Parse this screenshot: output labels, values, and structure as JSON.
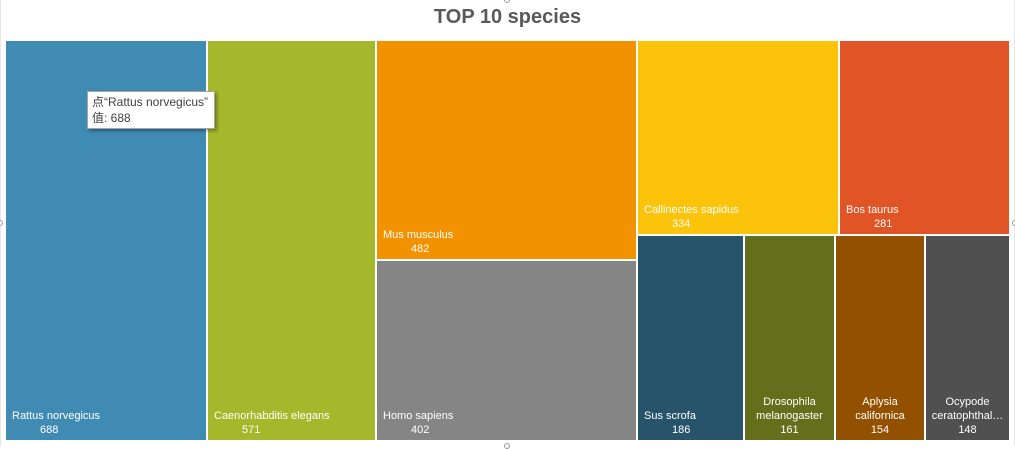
{
  "chart_data": {
    "type": "treemap",
    "title": "TOP 10 species",
    "items": [
      {
        "name": "Rattus norvegicus",
        "value": 688,
        "color": "#3f8bb3"
      },
      {
        "name": "Caenorhabditis elegans",
        "value": 571,
        "color": "#a5b72a"
      },
      {
        "name": "Mus musculus",
        "value": 482,
        "color": "#f39200"
      },
      {
        "name": "Homo sapiens",
        "value": 402,
        "color": "#858585"
      },
      {
        "name": "Callinectes sapidus",
        "value": 334,
        "color": "#fcc30b"
      },
      {
        "name": "Bos taurus",
        "value": 281,
        "color": "#e15426"
      },
      {
        "name": "Sus scrofa",
        "value": 186,
        "color": "#27546b"
      },
      {
        "name": "Drosophila melanogaster",
        "value": 161,
        "color": "#636f1a"
      },
      {
        "name": "Aplysia californica",
        "value": 154,
        "color": "#935100"
      },
      {
        "name": "Ocypode ceratophthal…",
        "value": 148,
        "color": "#505050"
      }
    ]
  },
  "tooltip": {
    "series_line": "点“Rattus norvegicus”",
    "value_line": "值: 688"
  }
}
